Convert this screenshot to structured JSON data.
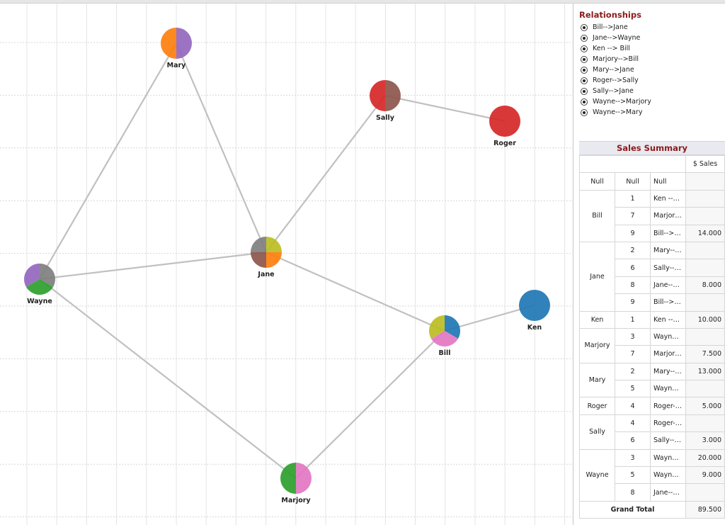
{
  "graph": {
    "nodes": [
      {
        "id": "Mary",
        "label": "Mary",
        "colors": [
          "#9467bd",
          "#ff7f0e"
        ]
      },
      {
        "id": "Sally",
        "label": "Sally",
        "colors": [
          "#8c564b",
          "#d62728"
        ]
      },
      {
        "id": "Roger",
        "label": "Roger",
        "colors": [
          "#d62728"
        ]
      },
      {
        "id": "Jane",
        "label": "Jane",
        "colors": [
          "#bcbd22",
          "#ff7f0e",
          "#8c564b",
          "#7f7f7f"
        ]
      },
      {
        "id": "Wayne",
        "label": "Wayne",
        "colors": [
          "#7f7f7f",
          "#2ca02c",
          "#9467bd"
        ]
      },
      {
        "id": "Ken",
        "label": "Ken",
        "colors": [
          "#1f77b4"
        ]
      },
      {
        "id": "Bill",
        "label": "Bill",
        "colors": [
          "#1f77b4",
          "#e377c2",
          "#bcbd22"
        ]
      },
      {
        "id": "Marjory",
        "label": "Marjory",
        "colors": [
          "#e377c2",
          "#2ca02c"
        ]
      }
    ],
    "edges": [
      [
        "Mary",
        "Jane"
      ],
      [
        "Mary",
        "Wayne"
      ],
      [
        "Sally",
        "Roger"
      ],
      [
        "Sally",
        "Jane"
      ],
      [
        "Jane",
        "Wayne"
      ],
      [
        "Jane",
        "Bill"
      ],
      [
        "Bill",
        "Ken"
      ],
      [
        "Bill",
        "Marjory"
      ],
      [
        "Wayne",
        "Marjory"
      ]
    ]
  },
  "legend": {
    "title": "Relationships",
    "items": [
      "Bill-->Jane",
      "Jane-->Wayne",
      "Ken --> Bill",
      "Marjory-->Bill",
      "Mary-->Jane",
      "Roger-->Sally",
      "Sally-->Jane",
      "Wayne-->Marjory",
      "Wayne-->Mary"
    ]
  },
  "summary": {
    "title": "Sales Summary",
    "value_header": "$ Sales",
    "null_row": [
      "Null",
      "Null",
      "Null",
      ""
    ],
    "groups": [
      {
        "name": "Bill",
        "rows": [
          [
            "1",
            "Ken --> Bill",
            ""
          ],
          [
            "7",
            "Marjory-->Bill",
            ""
          ],
          [
            "9",
            "Bill-->Jane",
            "14.000"
          ]
        ]
      },
      {
        "name": "Jane",
        "rows": [
          [
            "2",
            "Mary-->Jane",
            ""
          ],
          [
            "6",
            "Sally-->Jane",
            ""
          ],
          [
            "8",
            "Jane-->Way..",
            "8.000"
          ],
          [
            "9",
            "Bill-->Jane",
            ""
          ]
        ]
      },
      {
        "name": "Ken",
        "rows": [
          [
            "1",
            "Ken --> Bill",
            "10.000"
          ]
        ]
      },
      {
        "name": "Marjory",
        "rows": [
          [
            "3",
            "Wayne-->Ma..",
            ""
          ],
          [
            "7",
            "Marjory-->Bill",
            "7.500"
          ]
        ]
      },
      {
        "name": "Mary",
        "rows": [
          [
            "2",
            "Mary-->Jane",
            "13.000"
          ],
          [
            "5",
            "Wayne-->Ma..",
            ""
          ]
        ]
      },
      {
        "name": "Roger",
        "rows": [
          [
            "4",
            "Roger-->Sally",
            "5.000"
          ]
        ]
      },
      {
        "name": "Sally",
        "rows": [
          [
            "4",
            "Roger-->Sally",
            ""
          ],
          [
            "6",
            "Sally-->Jane",
            "3.000"
          ]
        ]
      },
      {
        "name": "Wayne",
        "rows": [
          [
            "3",
            "Wayne-->Ma..",
            "20.000"
          ],
          [
            "5",
            "Wayne-->Ma..",
            "9.000"
          ],
          [
            "8",
            "Jane-->Way..",
            ""
          ]
        ]
      }
    ],
    "grand_total_label": "Grand Total",
    "grand_total_value": "89.500"
  }
}
